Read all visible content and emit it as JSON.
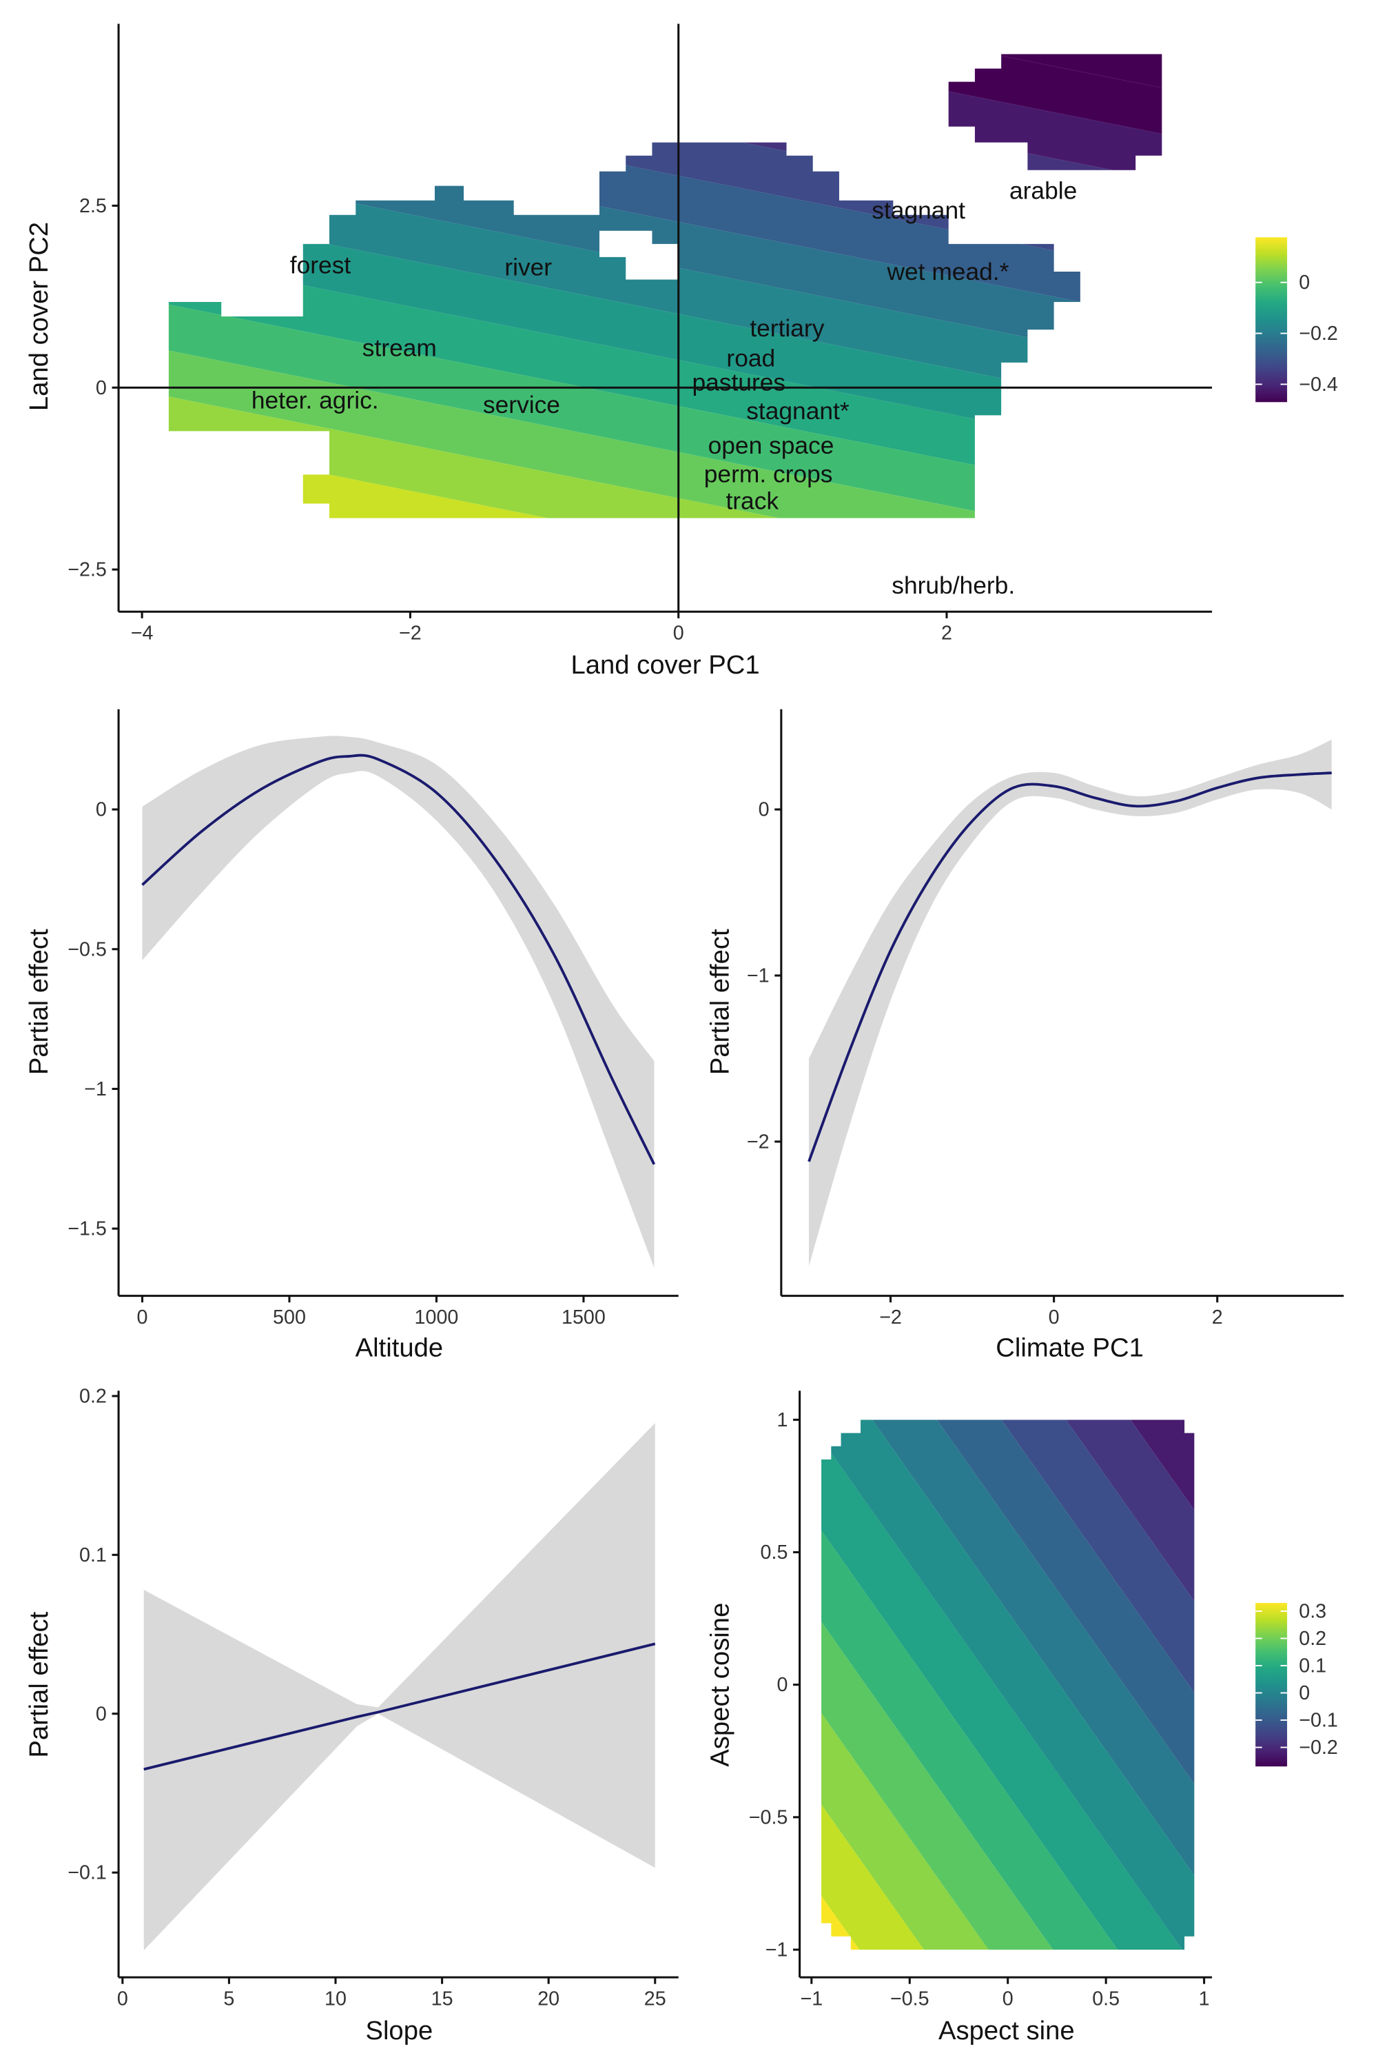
{
  "chart_data": [
    {
      "type": "heatmap",
      "xlabel": "Land cover PC1",
      "ylabel": "Land cover PC2",
      "x_ticks": [
        -4,
        -2,
        0,
        2
      ],
      "x_tick_labels": [
        "−4",
        "−2",
        "0",
        "2"
      ],
      "y_ticks": [
        -2.5,
        0,
        2.5
      ],
      "y_tick_labels": [
        "−2.5",
        "0",
        "2.5"
      ],
      "surface": {
        "intercept": -0.07,
        "coef_x": -0.029,
        "coef_y": -0.079,
        "band_width": 0.05
      },
      "colorbar": {
        "range": [
          -0.47,
          0.177
        ],
        "ticks": [
          0,
          -0.2,
          -0.4
        ],
        "tick_labels": [
          "0",
          "−0.2",
          "−0.4"
        ],
        "placement": "right"
      },
      "annotations": [
        {
          "text": "forest",
          "x": -2.67,
          "y": 1.68
        },
        {
          "text": "river",
          "x": -1.12,
          "y": 1.65
        },
        {
          "text": "stagnant",
          "x": 1.79,
          "y": 2.43
        },
        {
          "text": "arable",
          "x": 2.72,
          "y": 2.7
        },
        {
          "text": "wet mead.*",
          "x": 2.01,
          "y": 1.59
        },
        {
          "text": "stream",
          "x": -2.08,
          "y": 0.54
        },
        {
          "text": "tertiary",
          "x": 0.81,
          "y": 0.63
        },
        {
          "text": "road",
          "x": 0.54,
          "y": 0.47
        },
        {
          "text": "pastures",
          "x": 0.45,
          "y": -0.04
        },
        {
          "text": "stagnant*",
          "x": 0.89,
          "y": -0.18
        },
        {
          "text": "heter. agric.",
          "x": -2.71,
          "y": -0.18
        },
        {
          "text": "service",
          "x": -1.17,
          "y": -0.24
        },
        {
          "text": "open space",
          "x": 0.69,
          "y": -0.96
        },
        {
          "text": "perm. crops",
          "x": 0.67,
          "y": -1.12
        },
        {
          "text": "track",
          "x": 0.55,
          "y": -1.56
        },
        {
          "text": "shrub/herb.",
          "x": 2.05,
          "y": -2.72
        }
      ]
    },
    {
      "type": "line",
      "xlabel": "Altitude",
      "ylabel": "Partial effect",
      "x_ticks": [
        0,
        500,
        1000,
        1500
      ],
      "x_tick_labels": [
        "0",
        "500",
        "1000",
        "1500"
      ],
      "y_ticks": [
        0,
        -0.5,
        -1,
        -1.5
      ],
      "y_tick_labels": [
        "0",
        "−0.5",
        "−1",
        "−1.5"
      ],
      "x": [
        0,
        200,
        400,
        600,
        700,
        800,
        1000,
        1200,
        1400,
        1600,
        1740
      ],
      "y": [
        -0.27,
        -0.08,
        0.07,
        0.17,
        0.19,
        0.18,
        0.06,
        -0.18,
        -0.52,
        -0.97,
        -1.27
      ],
      "upper": [
        0.01,
        0.14,
        0.23,
        0.26,
        0.26,
        0.24,
        0.16,
        -0.05,
        -0.34,
        -0.7,
        -0.9
      ],
      "lower": [
        -0.54,
        -0.3,
        -0.08,
        0.09,
        0.13,
        0.12,
        -0.04,
        -0.3,
        -0.7,
        -1.25,
        -1.64
      ]
    },
    {
      "type": "line",
      "xlabel": "Climate PC1",
      "ylabel": "Partial effect",
      "x_ticks": [
        -2,
        0,
        2
      ],
      "x_tick_labels": [
        "−2",
        "0",
        "2"
      ],
      "y_ticks": [
        0,
        -1,
        -2
      ],
      "y_tick_labels": [
        "0",
        "−1",
        "−2"
      ],
      "x": [
        -3,
        -2.5,
        -2,
        -1.5,
        -1,
        -0.5,
        0,
        0.5,
        1,
        1.5,
        2,
        2.5,
        3,
        3.4
      ],
      "y": [
        -2.12,
        -1.45,
        -0.85,
        -0.4,
        -0.07,
        0.13,
        0.14,
        0.07,
        0.02,
        0.05,
        0.13,
        0.19,
        0.21,
        0.22
      ],
      "upper": [
        -1.5,
        -1.0,
        -0.55,
        -0.22,
        0.05,
        0.2,
        0.22,
        0.14,
        0.08,
        0.11,
        0.19,
        0.27,
        0.33,
        0.42
      ],
      "lower": [
        -2.75,
        -1.9,
        -1.15,
        -0.58,
        -0.2,
        0.05,
        0.07,
        0.0,
        -0.04,
        -0.02,
        0.06,
        0.12,
        0.1,
        0.0
      ]
    },
    {
      "type": "line",
      "xlabel": "Slope",
      "ylabel": "Partial effect",
      "x_ticks": [
        0,
        5,
        10,
        15,
        20,
        25
      ],
      "x_tick_labels": [
        "0",
        "5",
        "10",
        "15",
        "20",
        "25"
      ],
      "y_ticks": [
        0.2,
        0.1,
        0,
        -0.1
      ],
      "y_tick_labels": [
        "0.2",
        "0.1",
        "0",
        "−0.1"
      ],
      "x": [
        1,
        11,
        12,
        25
      ],
      "y": [
        -0.035,
        -0.002,
        0.001,
        0.044
      ],
      "upper": [
        0.078,
        0.006,
        0.004,
        0.183
      ],
      "lower": [
        -0.149,
        -0.008,
        0.0,
        -0.097
      ]
    },
    {
      "type": "heatmap",
      "xlabel": "Aspect sine",
      "ylabel": "Aspect cosine",
      "x_ticks": [
        -1,
        -0.5,
        0,
        0.5,
        1
      ],
      "x_tick_labels": [
        "−1",
        "−0.5",
        "0",
        "0.5",
        "1"
      ],
      "y_ticks": [
        1,
        0.5,
        0,
        -0.5,
        -1
      ],
      "y_tick_labels": [
        "1",
        "0.5",
        "0",
        "−0.5",
        "−1"
      ],
      "surface": {
        "intercept": 0.04,
        "coef_x": -0.152,
        "coef_y": -0.145,
        "band_width": 0.05
      },
      "colorbar": {
        "range": [
          -0.27,
          0.33
        ],
        "ticks": [
          0.3,
          0.2,
          0.1,
          0,
          -0.1,
          -0.2
        ],
        "tick_labels": [
          "0.3",
          "0.2",
          "0.1",
          "0",
          "−0.1",
          "−0.2"
        ],
        "placement": "right"
      }
    }
  ],
  "colors": {
    "line": "#1a1a6e",
    "ribbon": "#d9d9d9",
    "axis": "#111111"
  }
}
